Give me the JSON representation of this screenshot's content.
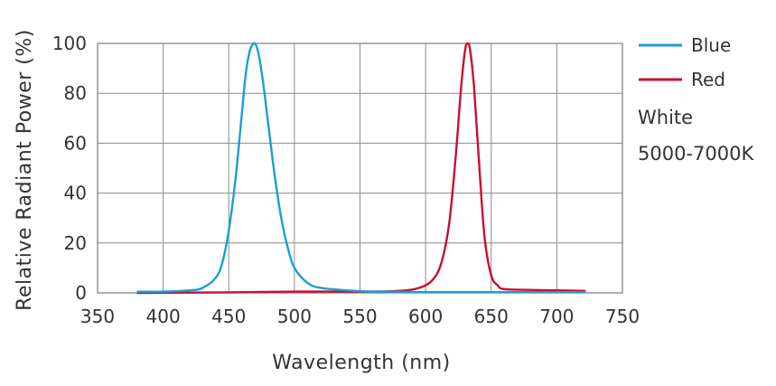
{
  "chart_data": {
    "type": "line",
    "xlabel": "Wavelength (nm)",
    "ylabel": "Relative Radiant Power (%)",
    "xlim": [
      350,
      750
    ],
    "ylim": [
      0,
      100
    ],
    "x_ticks": [
      350,
      400,
      450,
      500,
      550,
      600,
      650,
      700,
      750
    ],
    "y_ticks": [
      0,
      20,
      40,
      60,
      80,
      100
    ],
    "grid": true,
    "legend_position": "right",
    "series": [
      {
        "name": "Blue",
        "color": "#1a9fd4",
        "x": [
          380,
          400,
          420,
          430,
          440,
          445,
          450,
          455,
          460,
          463,
          466,
          469,
          471,
          473,
          476,
          480,
          485,
          490,
          495,
          500,
          510,
          520,
          540,
          560,
          600,
          650,
          700,
          722
        ],
        "y": [
          0.5,
          0.5,
          1,
          2,
          6,
          12,
          25,
          45,
          72,
          88,
          97,
          100,
          99,
          95,
          85,
          68,
          47,
          30,
          18,
          10,
          4,
          2,
          1,
          0.5,
          0.3,
          0.3,
          0.3,
          0.3
        ]
      },
      {
        "name": "Red",
        "color": "#c8102e",
        "x": [
          380,
          450,
          500,
          550,
          580,
          595,
          605,
          612,
          618,
          623,
          627,
          630,
          632,
          634,
          637,
          641,
          645,
          650,
          655,
          660,
          680,
          700,
          722
        ],
        "y": [
          0,
          0.2,
          0.5,
          0.5,
          0.8,
          2,
          5,
          12,
          28,
          55,
          82,
          97,
          100,
          97,
          82,
          50,
          22,
          7,
          3,
          1.5,
          1.2,
          1,
          0.8
        ]
      }
    ],
    "annotations": [
      "White",
      "5000-7000K"
    ]
  }
}
